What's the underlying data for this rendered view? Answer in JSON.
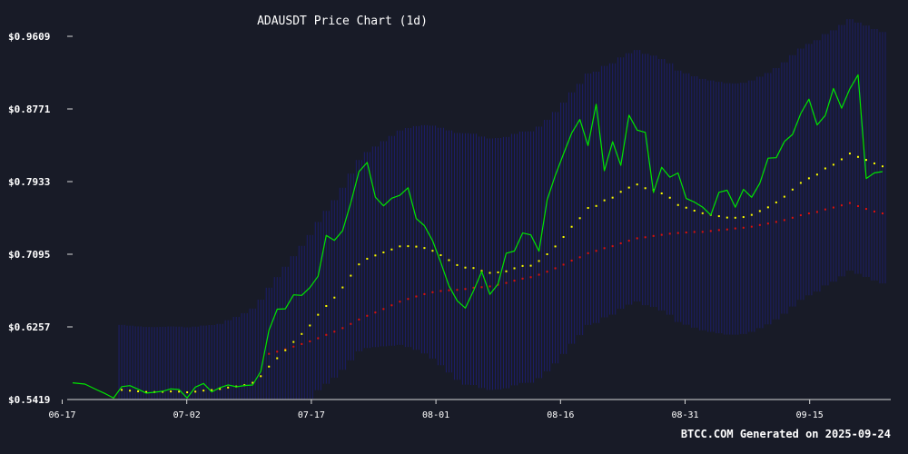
{
  "chart_data": {
    "type": "line",
    "title": "ADAUSDT Price Chart (1d)",
    "footer": "BTCC.COM Generated on 2025-09-24",
    "y_ticks": [
      "$0.9609",
      "$0.8771",
      "$0.7933",
      "$0.7095",
      "$0.6257",
      "$0.5419"
    ],
    "x_ticks": [
      "06-17",
      "07-02",
      "07-17",
      "08-01",
      "08-16",
      "08-31",
      "09-15"
    ],
    "ylim": [
      0.5419,
      0.9609
    ],
    "xlim": [
      0,
      100
    ],
    "grid": false,
    "colors": {
      "background": "#181b27",
      "price": "#00e600",
      "ma_short": "#ffff00",
      "ma_long": "#e01010",
      "band": "#2222bb",
      "text": "#ffffff",
      "axis": "#d8d8d8"
    },
    "series": [
      {
        "key": "price",
        "x": [
          0,
          1.5,
          3,
          4,
          5,
          6,
          7,
          8,
          9,
          10,
          11,
          12,
          13,
          14,
          15,
          16,
          17,
          18,
          19,
          20,
          21,
          22,
          23,
          24,
          25,
          26,
          27,
          28,
          29,
          30,
          31,
          32,
          33,
          34,
          35,
          36,
          37,
          38,
          39,
          40,
          41,
          42,
          43,
          44,
          45,
          46,
          47,
          48,
          49,
          50,
          51,
          52,
          53,
          54,
          55,
          56,
          57,
          58,
          59,
          60,
          61,
          62,
          63,
          64,
          65,
          66,
          67,
          68,
          69,
          70,
          71,
          72,
          73,
          74,
          75,
          76,
          77,
          78,
          79,
          80,
          81,
          82,
          83,
          84,
          85,
          86,
          87,
          88,
          89,
          90,
          91,
          92,
          93,
          94,
          95,
          96,
          97,
          98,
          99
        ],
        "values": [
          0.5612,
          0.5597,
          0.5529,
          0.5486,
          0.5436,
          0.5568,
          0.5579,
          0.5537,
          0.5493,
          0.5503,
          0.5514,
          0.5542,
          0.5534,
          0.5437,
          0.5563,
          0.5604,
          0.5507,
          0.5556,
          0.5588,
          0.5566,
          0.558,
          0.5587,
          0.5744,
          0.6217,
          0.6461,
          0.6465,
          0.6627,
          0.662,
          0.6711,
          0.6841,
          0.7313,
          0.7255,
          0.7366,
          0.7687,
          0.8047,
          0.8154,
          0.7754,
          0.7653,
          0.7741,
          0.7775,
          0.7862,
          0.7507,
          0.7425,
          0.7252,
          0.7002,
          0.6729,
          0.6559,
          0.6474,
          0.6673,
          0.6895,
          0.6632,
          0.6752,
          0.7106,
          0.7132,
          0.734,
          0.7318,
          0.7131,
          0.7722,
          0.8005,
          0.8252,
          0.8492,
          0.8649,
          0.8349,
          0.8825,
          0.8059,
          0.8393,
          0.8121,
          0.87,
          0.8527,
          0.8501,
          0.7807,
          0.8098,
          0.7984,
          0.8033,
          0.7738,
          0.7696,
          0.7639,
          0.7547,
          0.7809,
          0.7834,
          0.7638,
          0.7844,
          0.7752,
          0.7914,
          0.8203,
          0.8209,
          0.8396,
          0.8478,
          0.8719,
          0.8884,
          0.8587,
          0.8697,
          0.9008,
          0.8779,
          0.9002,
          0.9165,
          0.7969,
          0.8034,
          0.8048
        ]
      },
      {
        "key": "ma_short",
        "x": [
          6,
          7,
          8,
          9,
          10,
          11,
          12,
          13,
          14,
          15,
          16,
          17,
          18,
          19,
          20,
          21,
          22,
          23,
          24,
          25,
          26,
          27,
          28,
          29,
          30,
          31,
          32,
          33,
          34,
          35,
          36,
          37,
          38,
          39,
          40,
          41,
          42,
          43,
          44,
          45,
          46,
          47,
          48,
          49,
          50,
          51,
          52,
          53,
          54,
          55,
          56,
          57,
          58,
          59,
          60,
          61,
          62,
          63,
          64,
          65,
          66,
          67,
          68,
          69,
          70,
          71,
          72,
          73,
          74,
          75,
          76,
          77,
          78,
          79,
          80,
          81,
          82,
          83,
          84,
          85,
          86,
          87,
          88,
          89,
          90,
          91,
          92,
          93,
          94,
          95,
          96,
          97,
          98,
          99
        ],
        "values": [
          0.553,
          0.5521,
          0.5513,
          0.5506,
          0.5505,
          0.5508,
          0.5512,
          0.551,
          0.5502,
          0.551,
          0.5522,
          0.5528,
          0.5541,
          0.5557,
          0.5569,
          0.5585,
          0.5612,
          0.5688,
          0.5799,
          0.5895,
          0.5987,
          0.6083,
          0.6175,
          0.6273,
          0.6397,
          0.6498,
          0.6595,
          0.6712,
          0.6848,
          0.6978,
          0.7043,
          0.7081,
          0.7116,
          0.715,
          0.7186,
          0.7188,
          0.7183,
          0.7167,
          0.7135,
          0.7084,
          0.7027,
          0.697,
          0.6941,
          0.6936,
          0.6903,
          0.688,
          0.6886,
          0.6898,
          0.6933,
          0.696,
          0.6963,
          0.7017,
          0.7095,
          0.7185,
          0.7294,
          0.7412,
          0.7511,
          0.7629,
          0.7652,
          0.7717,
          0.7748,
          0.7815,
          0.7864,
          0.79,
          0.7857,
          0.7837,
          0.7797,
          0.7747,
          0.7663,
          0.7632,
          0.7598,
          0.7568,
          0.7549,
          0.7534,
          0.7518,
          0.7516,
          0.7524,
          0.7549,
          0.7593,
          0.7636,
          0.7693,
          0.7759,
          0.7841,
          0.7918,
          0.7971,
          0.8014,
          0.8085,
          0.8128,
          0.819,
          0.8257,
          0.8218,
          0.8183,
          0.8143,
          0.8109
        ]
      },
      {
        "key": "ma_long",
        "x": [
          24,
          25,
          26,
          27,
          28,
          29,
          30,
          31,
          32,
          33,
          34,
          35,
          36,
          37,
          38,
          39,
          40,
          41,
          42,
          43,
          44,
          45,
          46,
          47,
          48,
          49,
          50,
          51,
          52,
          53,
          54,
          55,
          56,
          57,
          58,
          59,
          60,
          61,
          62,
          63,
          64,
          65,
          66,
          67,
          68,
          69,
          70,
          71,
          72,
          73,
          74,
          75,
          76,
          77,
          78,
          79,
          80,
          81,
          82,
          83,
          84,
          85,
          86,
          87,
          88,
          89,
          90,
          91,
          92,
          93,
          94,
          95,
          96,
          97,
          98,
          99
        ],
        "values": [
          0.5946,
          0.5971,
          0.5998,
          0.6029,
          0.6059,
          0.609,
          0.6126,
          0.6165,
          0.6202,
          0.6243,
          0.6291,
          0.6342,
          0.6385,
          0.6423,
          0.6463,
          0.6506,
          0.6548,
          0.6579,
          0.6608,
          0.6635,
          0.6657,
          0.6671,
          0.6679,
          0.6684,
          0.6694,
          0.6709,
          0.6715,
          0.6724,
          0.6743,
          0.6764,
          0.679,
          0.6814,
          0.683,
          0.6859,
          0.6894,
          0.6933,
          0.6975,
          0.7022,
          0.706,
          0.7107,
          0.7134,
          0.7165,
          0.7188,
          0.7221,
          0.7251,
          0.7279,
          0.7291,
          0.7306,
          0.7319,
          0.7332,
          0.734,
          0.7346,
          0.7352,
          0.7353,
          0.7363,
          0.7374,
          0.7381,
          0.7393,
          0.7401,
          0.7413,
          0.7432,
          0.7449,
          0.7468,
          0.7489,
          0.7516,
          0.7545,
          0.7566,
          0.7583,
          0.7612,
          0.7634,
          0.7659,
          0.7686,
          0.765,
          0.7618,
          0.7588,
          0.7566
        ]
      }
    ],
    "band_range_x": [
      0,
      99
    ]
  }
}
